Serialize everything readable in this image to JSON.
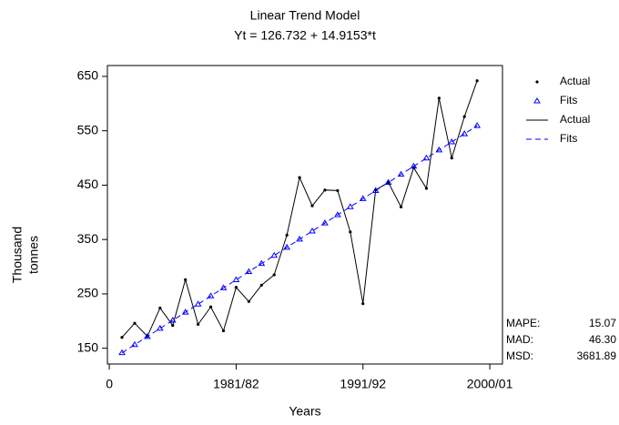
{
  "chart_data": {
    "type": "line",
    "title": "Linear Trend Model",
    "subtitle": "Yt = 126.732 + 14.9153*t",
    "xlabel": "Years",
    "ylabel_lines": [
      "Thousand",
      "tonnes"
    ],
    "x": [
      1,
      2,
      3,
      4,
      5,
      6,
      7,
      8,
      9,
      10,
      11,
      12,
      13,
      14,
      15,
      16,
      17,
      18,
      19,
      20,
      21,
      22,
      23,
      24,
      25,
      26,
      27,
      28,
      29
    ],
    "series": [
      {
        "name": "Actual",
        "color": "#000000",
        "marker": "dot",
        "dash": false,
        "values": [
          170,
          196,
          172,
          224,
          192,
          276,
          194,
          226,
          182,
          262,
          236,
          266,
          285,
          358,
          464,
          412,
          441,
          440,
          364,
          232,
          441,
          455,
          410,
          482,
          444,
          610,
          500,
          576,
          642
        ]
      },
      {
        "name": "Fits",
        "color": "#0000ff",
        "marker": "triangle",
        "dash": true,
        "values": [
          141.65,
          156.56,
          171.48,
          186.39,
          201.31,
          216.22,
          231.14,
          246.05,
          260.97,
          275.89,
          290.8,
          305.72,
          320.63,
          335.55,
          350.46,
          365.38,
          380.29,
          395.21,
          410.12,
          425.04,
          439.95,
          454.87,
          469.78,
          484.7,
          499.62,
          514.53,
          529.45,
          544.36,
          559.28
        ]
      }
    ],
    "xlim": [
      -0.15,
      31
    ],
    "ylim": [
      121,
      670
    ],
    "xticks": [
      0,
      {
        "value": 10,
        "label": "1981/82"
      },
      {
        "value": 20,
        "label": "1991/92"
      },
      {
        "value": 30,
        "label": "2000/01"
      }
    ],
    "yticks": [
      150,
      250,
      350,
      450,
      550,
      650
    ],
    "accuracy": [
      {
        "name": "MAPE:",
        "value": "15.07"
      },
      {
        "name": "MAD:",
        "value": "46.30"
      },
      {
        "name": "MSD:",
        "value": "3681.89"
      }
    ]
  }
}
